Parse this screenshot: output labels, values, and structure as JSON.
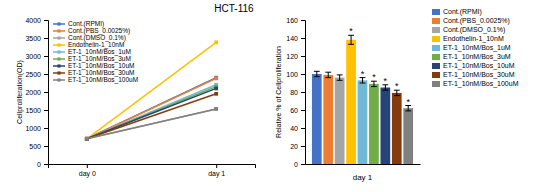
{
  "chart_data": [
    {
      "type": "line",
      "title": "HCT-116",
      "categories": [
        "day 0",
        "day 1"
      ],
      "series": [
        {
          "name": "Cont.(RPMI)",
          "color": "#4472c4",
          "values": [
            700,
            2400
          ]
        },
        {
          "name": "Cont.(PBS_0.0025%)",
          "color": "#ed7d31",
          "values": [
            700,
            2380
          ]
        },
        {
          "name": "Cont.(DMSO_0.1%)",
          "color": "#a5a5a5",
          "values": [
            700,
            1530
          ]
        },
        {
          "name": "Endothelin-1_10nM",
          "color": "#ffc000",
          "values": [
            700,
            3380
          ]
        },
        {
          "name": "ET-1_10nM/Bos_1uM",
          "color": "#70b8d4",
          "values": [
            700,
            2200
          ]
        },
        {
          "name": "ET-1_10nM/Bos_3uM",
          "color": "#70ad47",
          "values": [
            700,
            2150
          ]
        },
        {
          "name": "ET-1_10nM/Bos_10uM",
          "color": "#264478",
          "values": [
            700,
            2100
          ]
        },
        {
          "name": "ET-1_10nM/Bos_30uM",
          "color": "#843c0c",
          "values": [
            700,
            1950
          ]
        },
        {
          "name": "ET-1_10nM/Bos_100uM",
          "color": "#808080",
          "values": [
            700,
            1530
          ]
        }
      ],
      "ylabel": "Cellproliferation(OD)",
      "ylim": [
        0,
        4000
      ],
      "yticks": [
        0,
        500,
        1000,
        1500,
        2000,
        2500,
        3000,
        3500,
        4000
      ],
      "marker": "square",
      "legend": "upper left"
    },
    {
      "type": "bar",
      "categories": [
        null
      ],
      "series": [
        {
          "name": "Cont.(RPMI)",
          "color": "#4472c4",
          "values": [
            100
          ],
          "errors": [
            3
          ]
        },
        {
          "name": "Cont.(PBS_0.0025%)",
          "color": "#ed7d31",
          "values": [
            99
          ],
          "errors": [
            3
          ]
        },
        {
          "name": "Cont.(DMSO_0.1%)",
          "color": "#a5a5a5",
          "values": [
            96
          ],
          "errors": [
            3
          ]
        },
        {
          "name": "Endothelin-1_10nM",
          "color": "#ffc000",
          "values": [
            138
          ],
          "errors": [
            5
          ]
        },
        {
          "name": "ET-1_10nM/Bos_1uM",
          "color": "#70b8d4",
          "values": [
            93
          ],
          "errors": [
            3
          ]
        },
        {
          "name": "ET-1_10nM/Bos_3uM",
          "color": "#70ad47",
          "values": [
            89
          ],
          "errors": [
            3
          ]
        },
        {
          "name": "ET-1_10nM/Bos_10uM",
          "color": "#264478",
          "values": [
            85
          ],
          "errors": [
            3
          ]
        },
        {
          "name": "ET-1_10nM/Bos_30uM",
          "color": "#843c0c",
          "values": [
            79
          ],
          "errors": [
            3
          ]
        },
        {
          "name": "ET-1_10nM/Bos_100uM",
          "color": "#808080",
          "values": [
            62
          ],
          "errors": [
            3
          ]
        }
      ],
      "xlabel": "day 1",
      "ylabel": "Relative % of Cellproliferation",
      "ylim": [
        0,
        160
      ],
      "yticks": [
        0,
        20,
        40,
        60,
        80,
        100,
        120,
        140,
        160
      ],
      "legend": "right",
      "annotations": [
        {
          "text": "*",
          "series": "Endothelin-1_10nM"
        },
        {
          "text": "*",
          "series": "ET-1_10nM/Bos_1uM"
        },
        {
          "text": "*",
          "series": "ET-1_10nM/Bos_3uM"
        },
        {
          "text": "*",
          "series": "ET-1_10nM/Bos_10uM"
        },
        {
          "text": "*",
          "series": "ET-1_10nM/Bos_30uM"
        },
        {
          "text": "*",
          "series": "ET-1_10nM/Bos_100uM"
        }
      ]
    }
  ]
}
